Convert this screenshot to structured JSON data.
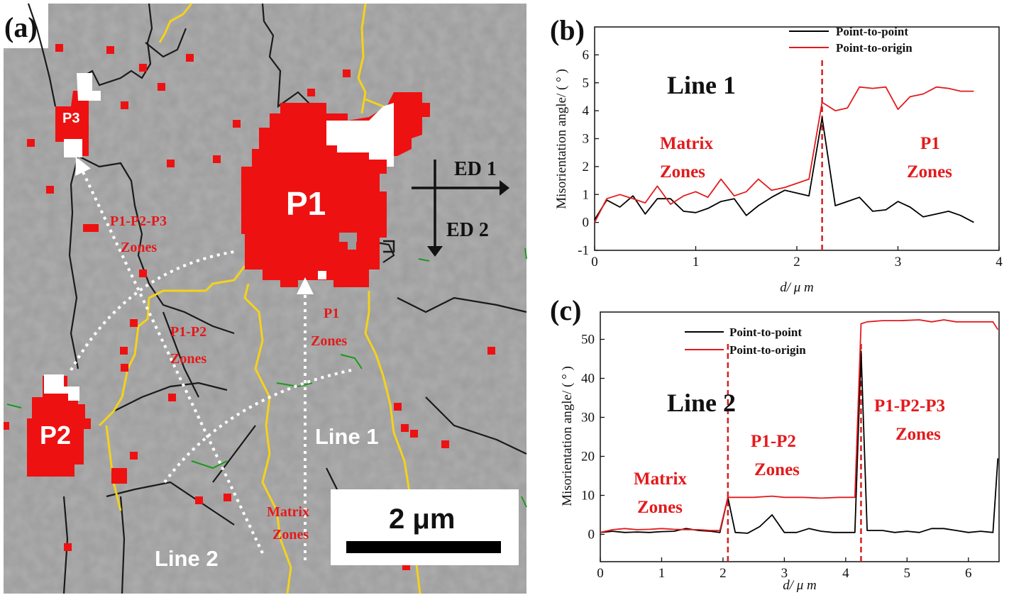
{
  "panels": {
    "a": "(a)",
    "b": "(b)",
    "c": "(c)"
  },
  "map": {
    "grain_labels": {
      "p1": "P1",
      "p2": "P2",
      "p3": "P3"
    },
    "zone_labels": {
      "p1p2p3_line1": "P1-P2-P3",
      "p1p2p3_line2": "Zones",
      "p1p2_line1": "P1-P2",
      "p1p2_line2": "Zones",
      "p1_line1": "P1",
      "p1_line2": "Zones",
      "matrix_line1": "Matrix",
      "matrix_line2": "Zones"
    },
    "line_labels": {
      "line1": "Line 1",
      "line2": "Line 2"
    },
    "directions": {
      "ed1": "ED 1",
      "ed2": "ED 2"
    },
    "scale_bar": "2 μm",
    "colors": {
      "background": "#9a9a9a",
      "grain": "#ee1111",
      "boundary_yellow": "#f5d21a",
      "boundary_black": "#1a1a1a"
    }
  },
  "chart_data": [
    {
      "type": "line",
      "panel": "b",
      "title": "Line 1",
      "xlabel": "d/ μ m",
      "ylabel": "Misorientation angle/ (  °  )",
      "xlim": [
        0,
        4
      ],
      "ylim": [
        -1,
        7
      ],
      "xticks": [
        0,
        1,
        2,
        3,
        4
      ],
      "yticks": [
        -1,
        0,
        1,
        2,
        3,
        4,
        5,
        6
      ],
      "legend_position": "top-center",
      "annotations": [
        {
          "line1": "Matrix",
          "line2": "Zones"
        },
        {
          "line1": "P1",
          "line2": "Zones"
        }
      ],
      "boundary_x": 2.25,
      "series": [
        {
          "name": "Point-to-point",
          "color": "#000000",
          "x": [
            0,
            0.12,
            0.25,
            0.38,
            0.5,
            0.62,
            0.75,
            0.88,
            1.0,
            1.12,
            1.25,
            1.38,
            1.5,
            1.62,
            1.75,
            1.88,
            2.0,
            2.12,
            2.25,
            2.38,
            2.5,
            2.62,
            2.75,
            2.88,
            3.0,
            3.12,
            3.25,
            3.38,
            3.5,
            3.62,
            3.75
          ],
          "values": [
            0.1,
            0.8,
            0.55,
            0.95,
            0.3,
            0.85,
            0.85,
            0.4,
            0.35,
            0.5,
            0.75,
            0.85,
            0.25,
            0.6,
            0.9,
            1.15,
            1.05,
            0.95,
            3.75,
            0.6,
            0.75,
            0.9,
            0.4,
            0.45,
            0.75,
            0.55,
            0.2,
            0.3,
            0.4,
            0.25,
            0.0
          ]
        },
        {
          "name": "Point-to-origin",
          "color": "#e31a1c",
          "x": [
            0,
            0.12,
            0.25,
            0.38,
            0.5,
            0.62,
            0.75,
            0.88,
            1.0,
            1.12,
            1.25,
            1.38,
            1.5,
            1.62,
            1.75,
            1.88,
            2.0,
            2.12,
            2.25,
            2.38,
            2.5,
            2.62,
            2.75,
            2.88,
            3.0,
            3.12,
            3.25,
            3.38,
            3.5,
            3.62,
            3.75
          ],
          "values": [
            0.0,
            0.85,
            1.0,
            0.85,
            0.7,
            1.3,
            0.65,
            0.95,
            1.1,
            0.9,
            1.55,
            0.95,
            1.1,
            1.55,
            1.15,
            1.25,
            1.4,
            1.55,
            4.3,
            4.0,
            4.1,
            4.85,
            4.8,
            4.85,
            4.05,
            4.5,
            4.6,
            4.85,
            4.8,
            4.7,
            4.7
          ]
        }
      ]
    },
    {
      "type": "line",
      "panel": "c",
      "title": "Line 2",
      "xlabel": "d/ μ m",
      "ylabel": "Misorientation angle/ (  °  )",
      "xlim": [
        0,
        6.5
      ],
      "ylim": [
        -7,
        57
      ],
      "xticks": [
        0,
        1,
        2,
        3,
        4,
        5,
        6
      ],
      "yticks": [
        0,
        10,
        20,
        30,
        40,
        50
      ],
      "legend_position": "top-center",
      "annotations": [
        {
          "line1": "Matrix",
          "line2": "Zones"
        },
        {
          "line1": "P1-P2",
          "line2": "Zones"
        },
        {
          "line1": "P1-P2-P3",
          "line2": "Zones"
        }
      ],
      "boundary_x": [
        2.08,
        4.25
      ],
      "series": [
        {
          "name": "Point-to-point",
          "color": "#000000",
          "x": [
            0,
            0.2,
            0.4,
            0.6,
            0.8,
            1.0,
            1.2,
            1.4,
            1.6,
            1.8,
            1.95,
            2.08,
            2.2,
            2.4,
            2.6,
            2.8,
            3.0,
            3.2,
            3.4,
            3.6,
            3.8,
            4.0,
            4.15,
            4.25,
            4.35,
            4.6,
            4.8,
            5.0,
            5.2,
            5.4,
            5.6,
            5.8,
            6.0,
            6.2,
            6.4,
            6.48
          ],
          "values": [
            0.5,
            0.8,
            0.5,
            0.6,
            0.5,
            0.7,
            0.8,
            1.5,
            1.0,
            0.8,
            0.5,
            9.5,
            0.5,
            0.3,
            2.0,
            5.0,
            0.5,
            0.5,
            1.5,
            0.8,
            0.5,
            0.5,
            0.5,
            47.0,
            1.0,
            1.0,
            0.5,
            0.8,
            0.5,
            1.5,
            1.5,
            1.0,
            0.5,
            0.8,
            0.5,
            19.5
          ]
        },
        {
          "name": "Point-to-origin",
          "color": "#e31a1c",
          "x": [
            0,
            0.2,
            0.4,
            0.6,
            0.8,
            1.0,
            1.2,
            1.4,
            1.6,
            1.8,
            1.95,
            2.08,
            2.2,
            2.5,
            2.8,
            3.0,
            3.3,
            3.6,
            3.9,
            4.15,
            4.25,
            4.35,
            4.6,
            4.9,
            5.2,
            5.4,
            5.6,
            5.8,
            6.0,
            6.2,
            6.4,
            6.48
          ],
          "values": [
            0.5,
            1.2,
            1.5,
            1.2,
            1.3,
            1.5,
            1.3,
            1.2,
            1.2,
            1.0,
            1.0,
            9.5,
            9.5,
            9.5,
            9.8,
            9.5,
            9.5,
            9.3,
            9.5,
            9.5,
            54.0,
            54.5,
            54.8,
            54.8,
            55.0,
            54.5,
            55.0,
            54.5,
            54.5,
            54.5,
            54.5,
            52.5
          ]
        }
      ]
    }
  ]
}
